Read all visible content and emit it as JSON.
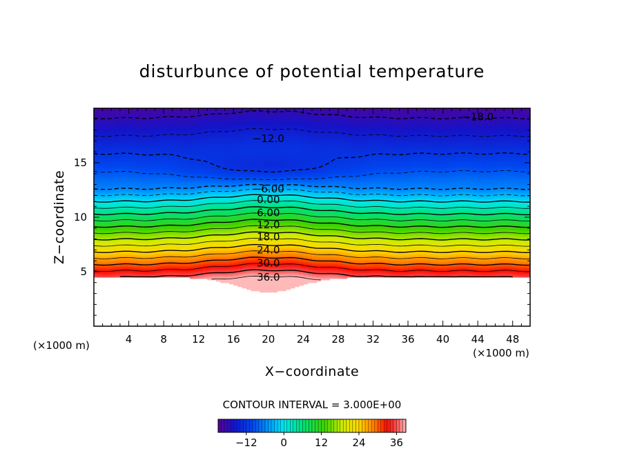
{
  "chart_data": {
    "type": "contour",
    "title": "disturbunce of potential temperature",
    "xlabel": "X−coordinate",
    "ylabel": "Z−coordinate",
    "x_unit": "(×1000 m)",
    "y_unit": "(×1000 m)",
    "xlim": [
      0,
      50
    ],
    "ylim": [
      0,
      20
    ],
    "x_ticks": [
      4,
      8,
      12,
      16,
      20,
      24,
      28,
      32,
      36,
      40,
      44,
      48
    ],
    "y_ticks": [
      5,
      10,
      15
    ],
    "contour_interval_label": "CONTOUR INTERVAL = 3.000E+00",
    "contour_interval": 3.0,
    "labeled_contours": [
      {
        "value": -18.0,
        "label": "−18.0",
        "x": 44,
        "z": 19.2
      },
      {
        "value": -12.0,
        "label": "−12.0",
        "x": 20,
        "z": 17.2
      },
      {
        "value": -6.0,
        "label": "−6.00",
        "x": 20,
        "z": 12.6
      },
      {
        "value": 0.0,
        "label": "0.00",
        "x": 20,
        "z": 11.6
      },
      {
        "value": 6.0,
        "label": "6.00",
        "x": 20,
        "z": 10.4
      },
      {
        "value": 12.0,
        "label": "12.0",
        "x": 20,
        "z": 9.3
      },
      {
        "value": 18.0,
        "label": "18.0",
        "x": 20,
        "z": 8.2
      },
      {
        "value": 24.0,
        "label": "24.0",
        "x": 20,
        "z": 7.0
      },
      {
        "value": 30.0,
        "label": "30.0",
        "x": 20,
        "z": 5.8
      },
      {
        "value": 36.0,
        "label": "36.0",
        "x": 20,
        "z": 4.5
      }
    ],
    "colorbar": {
      "range": [
        -21,
        39
      ],
      "ticks": [
        -12,
        0,
        12,
        24,
        36
      ],
      "tick_labels": [
        "−12",
        "0",
        "12",
        "24",
        "36"
      ]
    }
  }
}
